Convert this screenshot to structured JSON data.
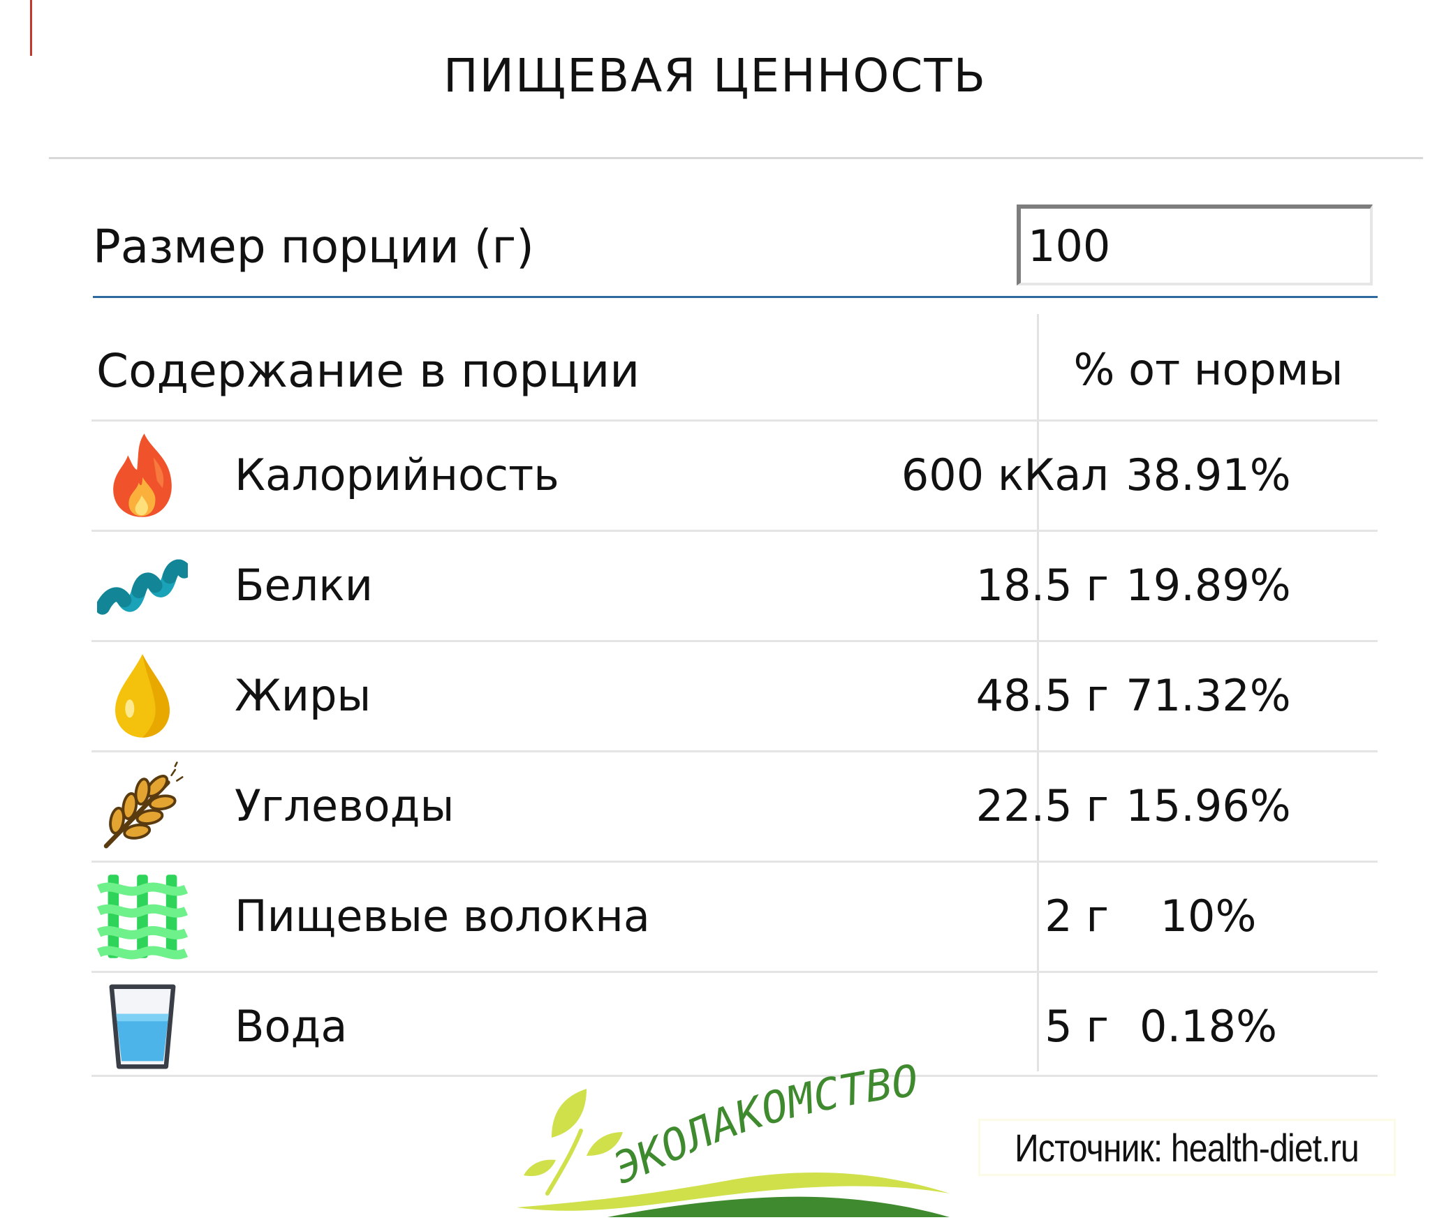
{
  "title": "ПИЩЕВАЯ ЦЕННОСТЬ",
  "serving": {
    "label": "Размер порции (г)",
    "value": "100"
  },
  "table": {
    "header_left": "Содержание в порции",
    "header_right": "% от нормы",
    "rows": [
      {
        "icon": "flame-icon",
        "name": "Калорийность",
        "amount": "600 кКал",
        "percent": "38.91%"
      },
      {
        "icon": "protein-helix-icon",
        "name": "Белки",
        "amount": "18.5 г",
        "percent": "19.89%"
      },
      {
        "icon": "oil-drop-icon",
        "name": "Жиры",
        "amount": "48.5 г",
        "percent": "71.32%"
      },
      {
        "icon": "wheat-icon",
        "name": "Углеводы",
        "amount": "22.5 г",
        "percent": "15.96%"
      },
      {
        "icon": "fiber-mesh-icon",
        "name": "Пищевые волокна",
        "amount": "2 г",
        "percent": "10%"
      },
      {
        "icon": "water-glass-icon",
        "name": "Вода",
        "amount": "5 г",
        "percent": "0.18%"
      }
    ]
  },
  "logo": {
    "text": "ЭКОЛАКОМСТВО"
  },
  "source": {
    "text": "Источник: health-diet.ru"
  },
  "colors": {
    "accent": "#2c6aa0",
    "logo_green": "#3f8a2e",
    "logo_yellow": "#cfe04a"
  }
}
